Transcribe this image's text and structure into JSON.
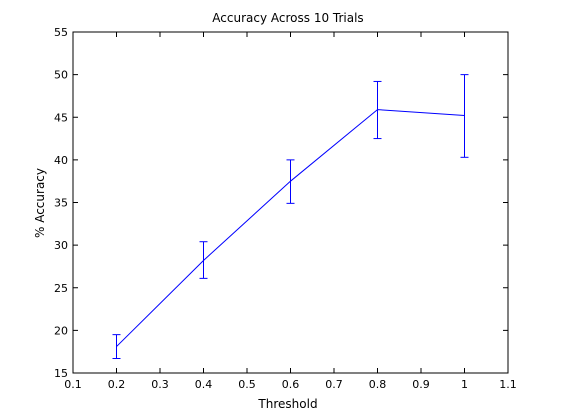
{
  "chart_data": {
    "type": "line",
    "title": "Accuracy Across 10 Trials",
    "xlabel": "Threshold",
    "ylabel": "% Accuracy",
    "xlim": [
      0.1,
      1.1
    ],
    "ylim": [
      15,
      55
    ],
    "xticks": [
      "0.1",
      "0.2",
      "0.3",
      "0.4",
      "0.5",
      "0.6",
      "0.7",
      "0.8",
      "0.9",
      "1",
      "1.1"
    ],
    "yticks": [
      "15",
      "20",
      "25",
      "30",
      "35",
      "40",
      "45",
      "50",
      "55"
    ],
    "grid": false,
    "legend": "none",
    "series": [
      {
        "x": [
          0.2,
          0.4,
          0.6,
          0.8,
          1.0
        ],
        "y": [
          18.1,
          28.2,
          37.5,
          45.9,
          45.2
        ],
        "error_low": [
          16.7,
          26.1,
          34.9,
          42.5,
          40.3
        ],
        "error_high": [
          19.5,
          30.4,
          40.0,
          49.2,
          50.0
        ],
        "color": "#0000ff"
      }
    ]
  }
}
